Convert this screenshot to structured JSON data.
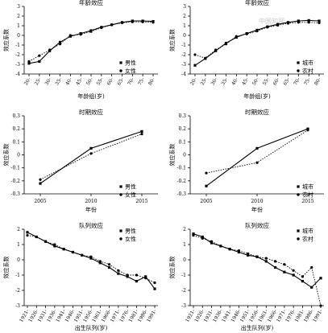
{
  "chart_data": [
    {
      "type": "line",
      "title": "年龄效应",
      "xlabel": "年龄组(岁)",
      "ylabel": "效应系数",
      "categories": [
        "20-",
        "25-",
        "30-",
        "35-",
        "40-",
        "45-",
        "50-",
        "55-",
        "60-",
        "65-",
        "70-",
        "75-",
        "80-"
      ],
      "ylim": [
        -4,
        3
      ],
      "yticks": [
        -4,
        -3,
        -2,
        -1,
        0,
        1,
        2,
        3
      ],
      "legend_position": "right",
      "series": [
        {
          "name": "男性",
          "style": "solid",
          "marker": "square",
          "values": [
            -2.9,
            -2.7,
            -1.6,
            -0.7,
            -0.1,
            0.2,
            0.5,
            0.85,
            1.1,
            1.35,
            1.5,
            1.5,
            1.45
          ]
        },
        {
          "name": "女性",
          "style": "dotted",
          "marker": "circle",
          "values": [
            -2.7,
            -2.1,
            -1.5,
            -0.9,
            0.0,
            0.1,
            0.4,
            0.8,
            1.1,
            1.3,
            1.4,
            1.4,
            1.35
          ]
        }
      ]
    },
    {
      "type": "line",
      "title": "年龄效应",
      "xlabel": "年龄组(岁)",
      "ylabel": "效应系数",
      "categories": [
        "20-",
        "25-",
        "30-",
        "35-",
        "40-",
        "45-",
        "50-",
        "55-",
        "60-",
        "65-",
        "70-",
        "75-",
        "80-"
      ],
      "ylim": [
        -4,
        3
      ],
      "yticks": [
        -4,
        -3,
        -2,
        -1,
        0,
        1,
        2,
        3
      ],
      "legend_position": "right",
      "series": [
        {
          "name": "城市",
          "style": "solid",
          "marker": "square",
          "values": [
            -3.1,
            -2.4,
            -1.6,
            -0.8,
            -0.2,
            0.2,
            0.55,
            0.9,
            1.15,
            1.35,
            1.5,
            1.55,
            1.5
          ]
        },
        {
          "name": "农村",
          "style": "dotted",
          "marker": "circle",
          "values": [
            -2.0,
            -2.35,
            -1.5,
            -0.9,
            -0.1,
            0.15,
            0.45,
            0.85,
            1.05,
            1.25,
            1.35,
            1.35,
            1.3
          ]
        }
      ]
    },
    {
      "type": "line",
      "title": "时期效应",
      "xlabel": "年份",
      "ylabel": "效应系数",
      "categories": [
        "2005",
        "2010",
        "2015"
      ],
      "ylim": [
        -0.3,
        0.3
      ],
      "yticks": [
        -0.3,
        -0.2,
        -0.1,
        0,
        0.1,
        0.2,
        0.3
      ],
      "legend_position": "right",
      "series": [
        {
          "name": "男性",
          "style": "solid",
          "marker": "square",
          "values": [
            -0.22,
            0.05,
            0.18
          ]
        },
        {
          "name": "女性",
          "style": "dotted",
          "marker": "circle",
          "values": [
            -0.19,
            0.01,
            0.16
          ]
        }
      ]
    },
    {
      "type": "line",
      "title": "时期效应",
      "xlabel": "年份",
      "ylabel": "效应系数",
      "categories": [
        "2005",
        "2010",
        "2015"
      ],
      "ylim": [
        -0.3,
        0.3
      ],
      "yticks": [
        -0.3,
        -0.2,
        -0.1,
        0,
        0.1,
        0.2,
        0.3
      ],
      "legend_position": "right",
      "series": [
        {
          "name": "城市",
          "style": "solid",
          "marker": "square",
          "values": [
            -0.24,
            0.05,
            0.2
          ]
        },
        {
          "name": "农村",
          "style": "dotted",
          "marker": "circle",
          "values": [
            -0.14,
            -0.06,
            0.19
          ]
        }
      ]
    },
    {
      "type": "line",
      "title": "队列效应",
      "xlabel": "出生队列(岁)",
      "ylabel": "效应系数",
      "categories": [
        "1921-",
        "1926-",
        "1931-",
        "1936-",
        "1941-",
        "1946-",
        "1951-",
        "1956-",
        "1961-",
        "1966-",
        "1971-",
        "1976-",
        "1981-",
        "1986-",
        "1991-"
      ],
      "ylim": [
        -3,
        2
      ],
      "yticks": [
        -3,
        -2,
        -1,
        0,
        1,
        2
      ],
      "legend_position": "top-right",
      "series": [
        {
          "name": "男性",
          "style": "solid",
          "marker": "square",
          "values": [
            1.8,
            1.5,
            1.2,
            0.9,
            0.7,
            0.5,
            0.3,
            0.1,
            -0.2,
            -0.5,
            -0.9,
            -1.1,
            -1.4,
            -1.1,
            -1.9
          ]
        },
        {
          "name": "女性",
          "style": "dotted",
          "marker": "circle",
          "values": [
            1.6,
            1.5,
            1.2,
            1.0,
            0.7,
            0.5,
            0.3,
            0.2,
            -0.1,
            -0.3,
            -0.7,
            -1.0,
            -1.0,
            -1.2,
            -1.5
          ]
        }
      ]
    },
    {
      "type": "line",
      "title": "队列效应",
      "xlabel": "出生队列(岁)",
      "ylabel": "效应系数",
      "categories": [
        "1921-",
        "1926-",
        "1931-",
        "1936-",
        "1941-",
        "1946-",
        "1951-",
        "1956-",
        "1961-",
        "1966-",
        "1971-",
        "1976-",
        "1981-",
        "1986-",
        "1991-"
      ],
      "ylim": [
        -3,
        2
      ],
      "yticks": [
        -3,
        -2,
        -1,
        0,
        1,
        2
      ],
      "legend_position": "top-right",
      "series": [
        {
          "name": "城市",
          "style": "solid",
          "marker": "square",
          "values": [
            1.7,
            1.5,
            1.1,
            0.9,
            0.7,
            0.5,
            0.3,
            0.2,
            -0.1,
            -0.5,
            -0.8,
            -1.0,
            -1.4,
            -1.8,
            -1.2
          ]
        },
        {
          "name": "农村",
          "style": "dotted",
          "marker": "circle",
          "values": [
            1.6,
            1.4,
            1.2,
            0.9,
            0.7,
            0.6,
            0.4,
            0.2,
            0.1,
            -0.1,
            -0.3,
            -0.7,
            -1.1,
            -0.5,
            -3.0
          ]
        }
      ]
    }
  ],
  "watermark": "中国知网"
}
